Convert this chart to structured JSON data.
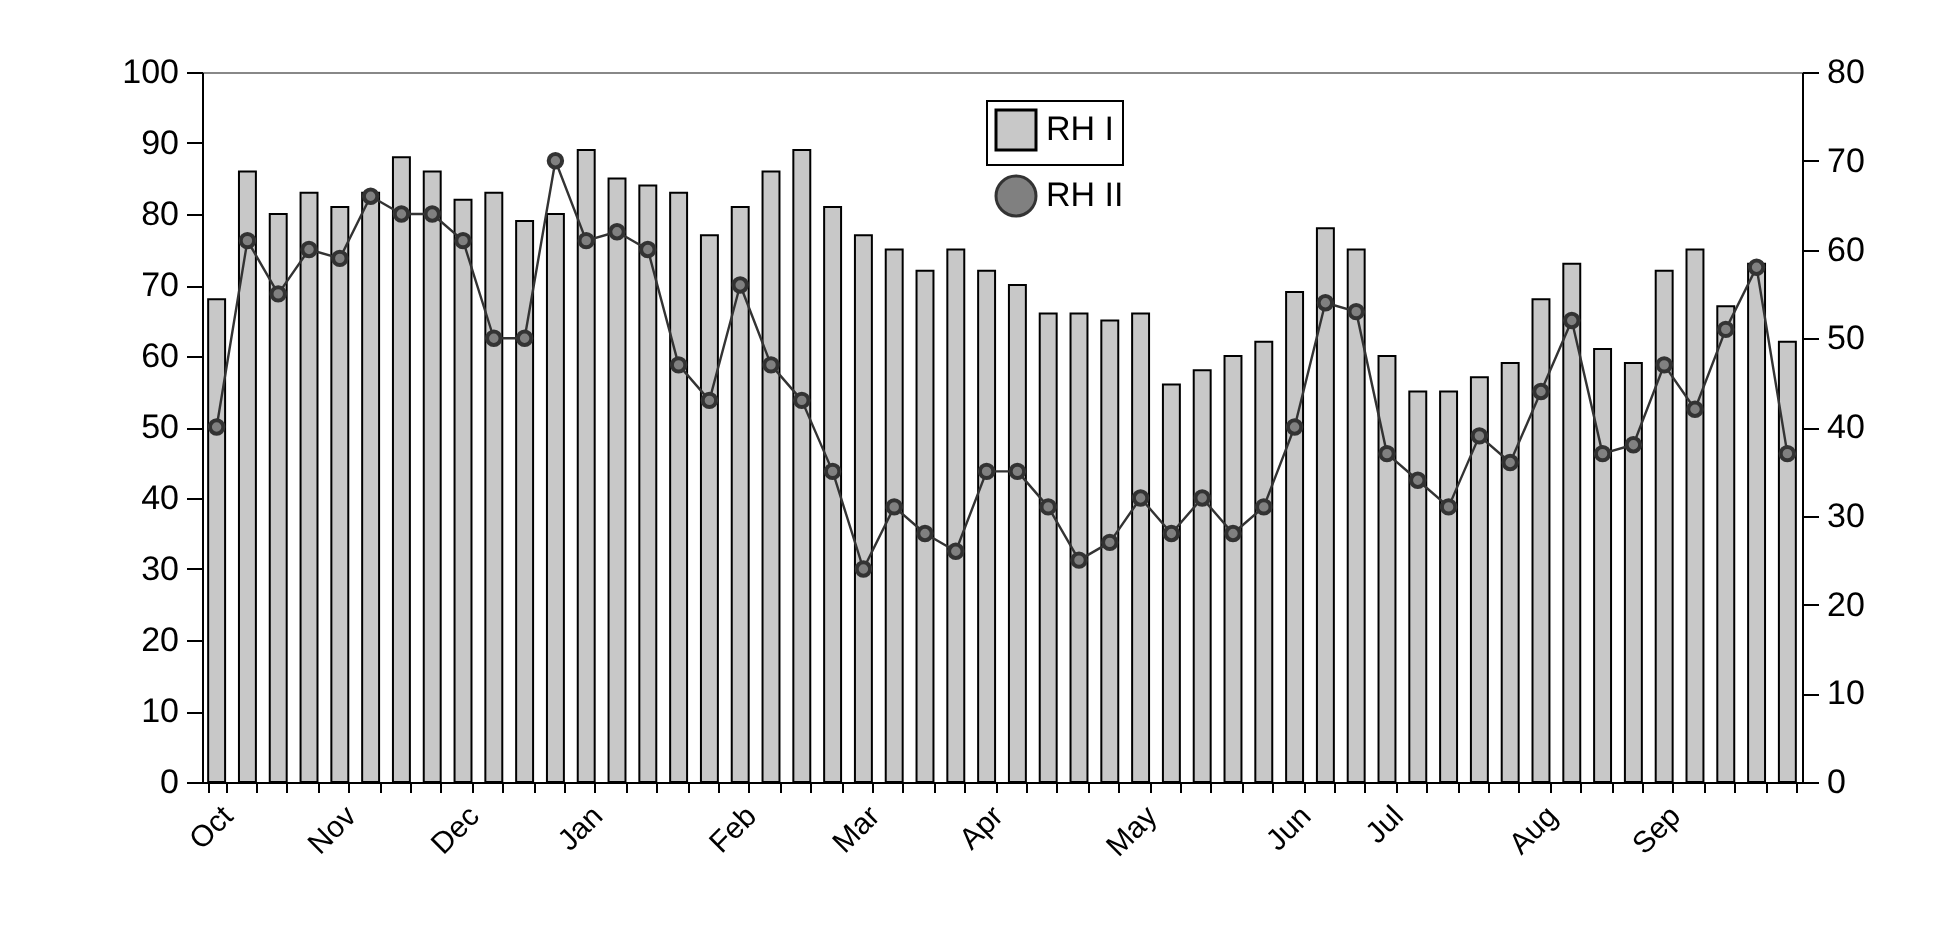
{
  "chart_data": {
    "type": "bar",
    "categories": [
      "Oct",
      null,
      null,
      null,
      "Nov",
      null,
      null,
      null,
      "Dec",
      null,
      null,
      null,
      "Jan",
      null,
      null,
      null,
      null,
      "Feb",
      null,
      null,
      null,
      "Mar",
      null,
      null,
      null,
      "Apr",
      null,
      null,
      null,
      null,
      "May",
      null,
      null,
      null,
      null,
      "Jun",
      null,
      null,
      "Jul",
      null,
      null,
      null,
      null,
      "Aug",
      null,
      null,
      null,
      "Sep",
      null,
      null,
      null,
      null
    ],
    "series": [
      {
        "name": "RH I",
        "color": "#c8c8c8",
        "values": [
          68,
          86,
          80,
          83,
          81,
          83,
          88,
          86,
          82,
          83,
          79,
          80,
          89,
          85,
          84,
          83,
          77,
          81,
          86,
          89,
          81,
          77,
          75,
          72,
          75,
          72,
          70,
          66,
          66,
          65,
          66,
          56,
          58,
          60,
          62,
          69,
          78,
          75,
          60,
          55,
          55,
          57,
          59,
          68,
          73,
          61,
          59,
          72,
          75,
          67,
          73,
          62
        ]
      },
      {
        "name": "RH II",
        "type": "line",
        "axis": "y2",
        "color": "#333333",
        "marker": "circle",
        "values": [
          40,
          61,
          55,
          60,
          59,
          66,
          64,
          64,
          61,
          50,
          50,
          70,
          61,
          62,
          60,
          47,
          43,
          56,
          47,
          43,
          35,
          24,
          31,
          28,
          26,
          35,
          35,
          31,
          25,
          27,
          32,
          28,
          32,
          28,
          31,
          40,
          54,
          53,
          37,
          34,
          31,
          39,
          36,
          44,
          52,
          37,
          38,
          47,
          42,
          51,
          58,
          37
        ]
      }
    ],
    "ylim": [
      0,
      100
    ],
    "yticks": [
      0,
      10,
      20,
      30,
      40,
      50,
      60,
      70,
      80,
      90,
      100
    ],
    "y2lim": [
      0,
      80
    ],
    "y2ticks": [
      0,
      10,
      20,
      30,
      40,
      50,
      60,
      70,
      80
    ],
    "grid": false,
    "legend": "top"
  }
}
